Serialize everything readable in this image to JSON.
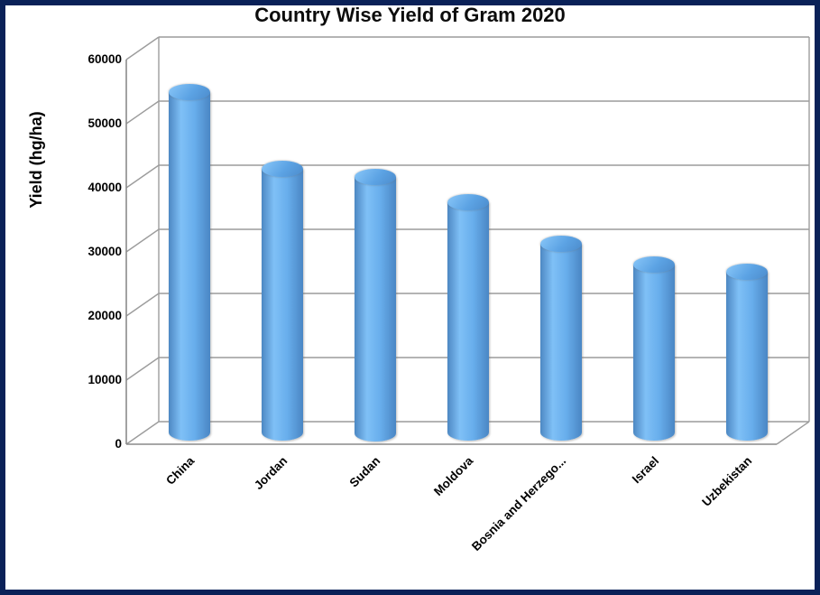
{
  "frame": {
    "border_color": "#0a2158",
    "background_color": "#ffffff"
  },
  "chart_data": {
    "type": "bar",
    "subtype": "3d-cylinder",
    "title": "Country Wise Yield of Gram 2020",
    "xlabel": "",
    "ylabel": "Yield (hg/ha)",
    "categories": [
      "China",
      "Jordan",
      "Sudan",
      "Moldova",
      "Bosnia and Herzego...",
      "Israel",
      "Uzbekistan"
    ],
    "values": [
      53200,
      41200,
      40000,
      36000,
      29500,
      26300,
      25200
    ],
    "ylim": [
      0,
      60000
    ],
    "yticks": [
      0,
      10000,
      20000,
      30000,
      40000,
      50000,
      60000
    ],
    "grid": true,
    "legend": false,
    "colors": {
      "bar_edge_left": "#4d88c3",
      "bar_bright": "#7fc0f6",
      "bar_mid": "#68aeec",
      "bar_edge_right": "#4a86c4",
      "bar_top_highlight": "#83c2f6",
      "bar_top_mid": "#5ca3e4",
      "bar_top_edge": "#4c8bcb",
      "wall_line": "#9c9c9c",
      "axis_line": "#8a8a8a",
      "text": "#000000"
    }
  }
}
